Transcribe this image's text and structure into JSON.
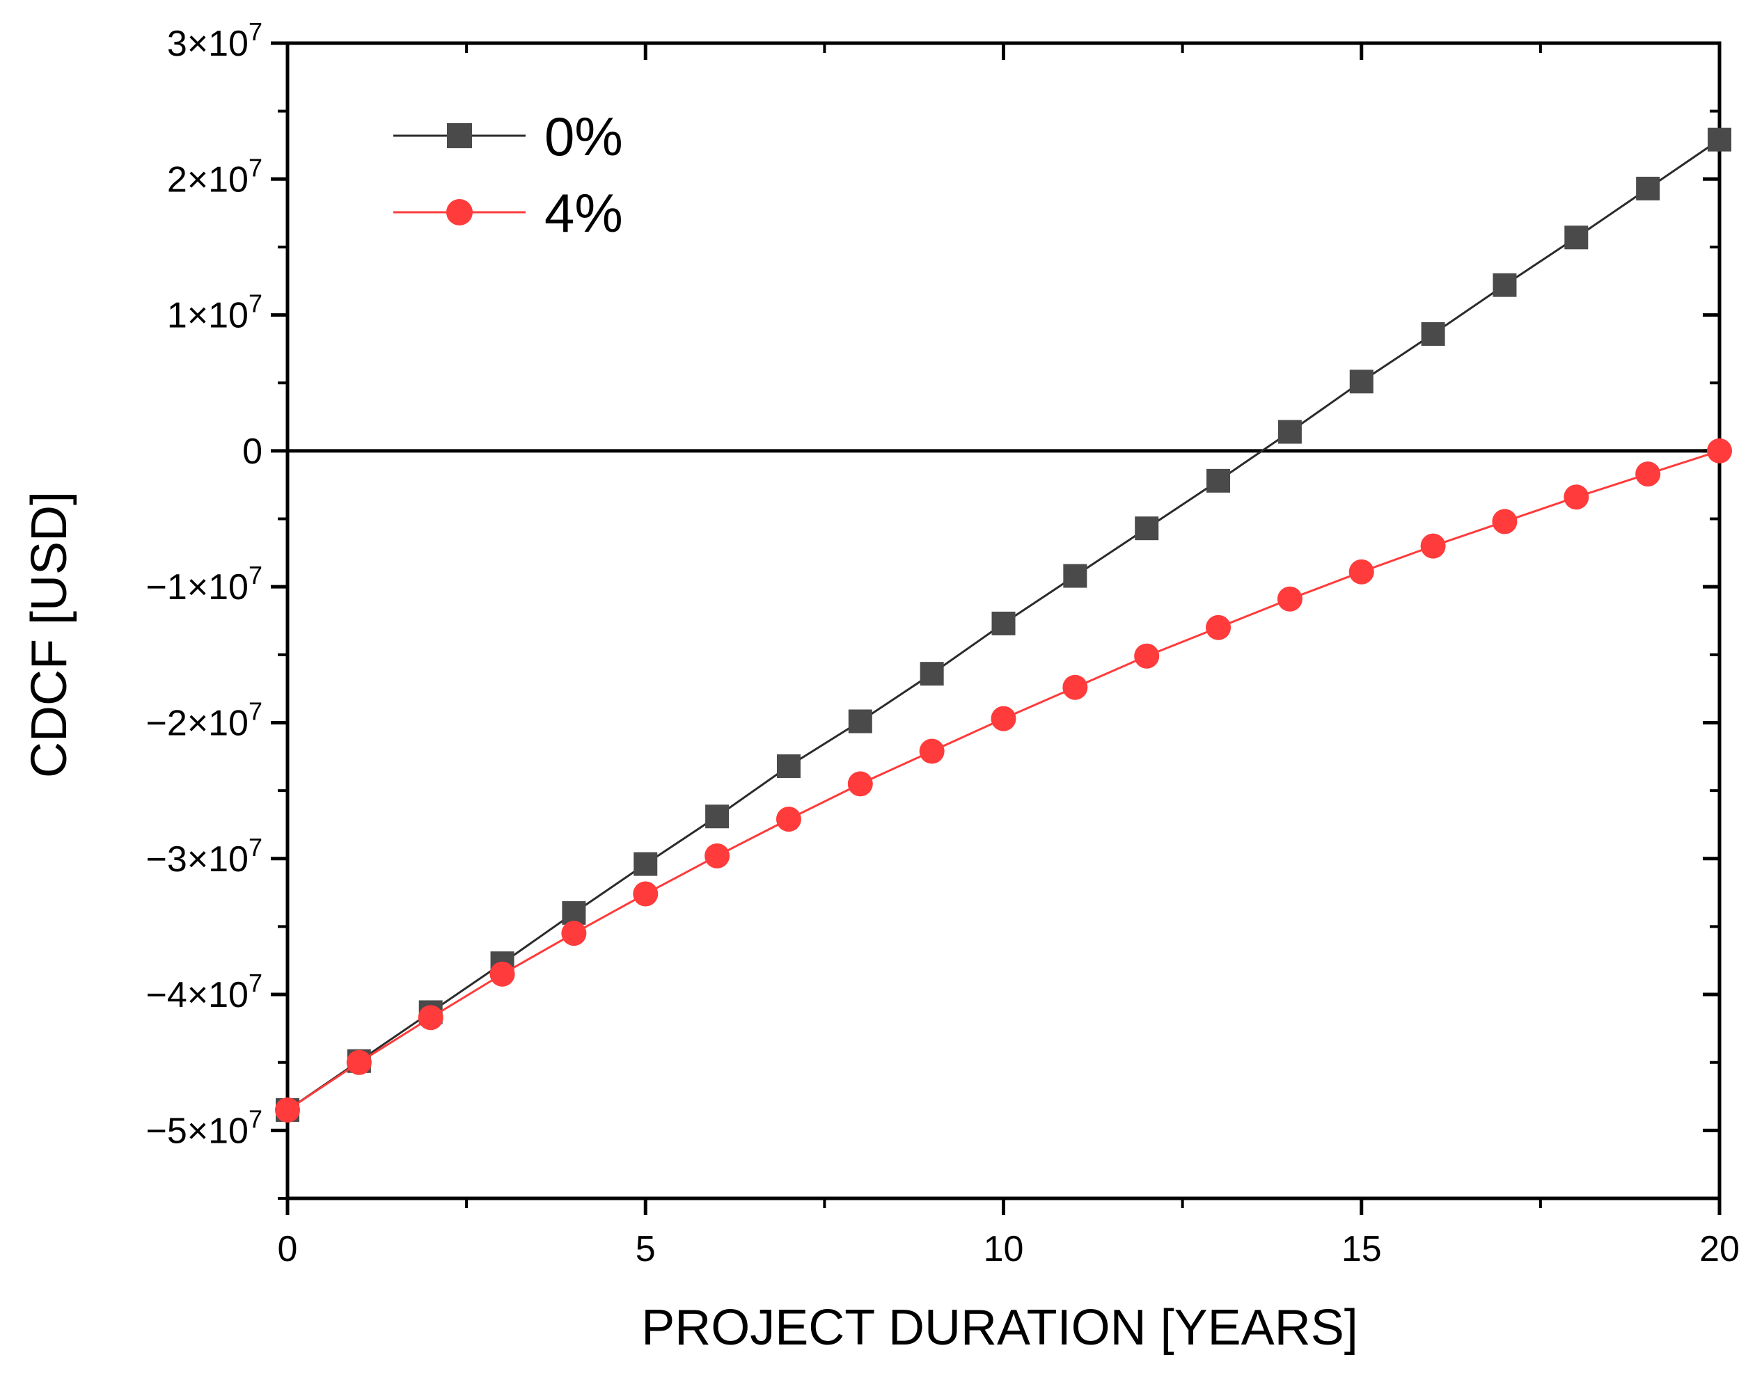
{
  "chart_data": {
    "type": "line",
    "title": "",
    "xlabel": "PROJECT DURATION [YEARS]",
    "ylabel": "CDCF [USD]",
    "xlim": [
      0,
      20
    ],
    "ylim": [
      -55000000,
      30000000
    ],
    "x_ticks": [
      {
        "value": 0,
        "label": "0"
      },
      {
        "value": 5,
        "label": "5"
      },
      {
        "value": 10,
        "label": "10"
      },
      {
        "value": 15,
        "label": "15"
      },
      {
        "value": 20,
        "label": "20"
      }
    ],
    "y_ticks": [
      {
        "value": 30000000,
        "label": "3×10",
        "exp": "7"
      },
      {
        "value": 20000000,
        "label": "2×10",
        "exp": "7"
      },
      {
        "value": 10000000,
        "label": "1×10",
        "exp": "7"
      },
      {
        "value": 0,
        "label": "0",
        "exp": ""
      },
      {
        "value": -10000000,
        "label": "−1×10",
        "exp": "7"
      },
      {
        "value": -20000000,
        "label": "−2×10",
        "exp": "7"
      },
      {
        "value": -30000000,
        "label": "−3×10",
        "exp": "7"
      },
      {
        "value": -40000000,
        "label": "−4×10",
        "exp": "7"
      },
      {
        "value": -50000000,
        "label": "−5×10",
        "exp": "7"
      }
    ],
    "grid": false,
    "zero_line": true,
    "legend_position": "top-left",
    "x": [
      0,
      1,
      2,
      3,
      4,
      5,
      6,
      7,
      8,
      9,
      10,
      11,
      12,
      13,
      14,
      15,
      16,
      17,
      18,
      19,
      20
    ],
    "series": [
      {
        "name": "0%",
        "marker": "square",
        "color": "#4a4a4a",
        "line_color": "#2b2b2b",
        "values": [
          -48500000,
          -44900000,
          -41300000,
          -37700000,
          -34000000,
          -30400000,
          -26900000,
          -23200000,
          -19900000,
          -16400000,
          -12700000,
          -9200000,
          -5700000,
          -2200000,
          1400000,
          5100000,
          8600000,
          12200000,
          15700000,
          19300000,
          22900000
        ]
      },
      {
        "name": "4%",
        "marker": "circle",
        "color": "#ff3b3b",
        "line_color": "#ff3b3b",
        "values": [
          -48500000,
          -45000000,
          -41700000,
          -38500000,
          -35500000,
          -32600000,
          -29800000,
          -27100000,
          -24500000,
          -22100000,
          -19700000,
          -17400000,
          -15100000,
          -13000000,
          -10900000,
          -8900000,
          -7000000,
          -5200000,
          -3400000,
          -1700000,
          0
        ]
      }
    ]
  }
}
